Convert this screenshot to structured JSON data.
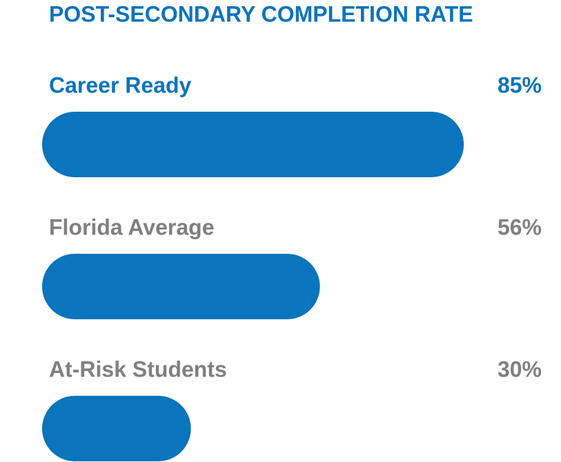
{
  "chart_data": {
    "type": "bar",
    "orientation": "horizontal",
    "title": "POST-SECONDARY COMPLETION RATE",
    "categories": [
      "Career Ready",
      "Florida Average",
      "At-Risk Students"
    ],
    "values": [
      85,
      56,
      30
    ],
    "value_labels": [
      "85%",
      "56%",
      "30%"
    ],
    "color": "#0a74bc",
    "title_color": "#0a74bc",
    "category_colors": [
      "#0a74bc",
      "#808080",
      "#808080"
    ],
    "value_label_colors": [
      "#0a74bc",
      "#808080",
      "#808080"
    ],
    "xlim": [
      0,
      100
    ]
  }
}
